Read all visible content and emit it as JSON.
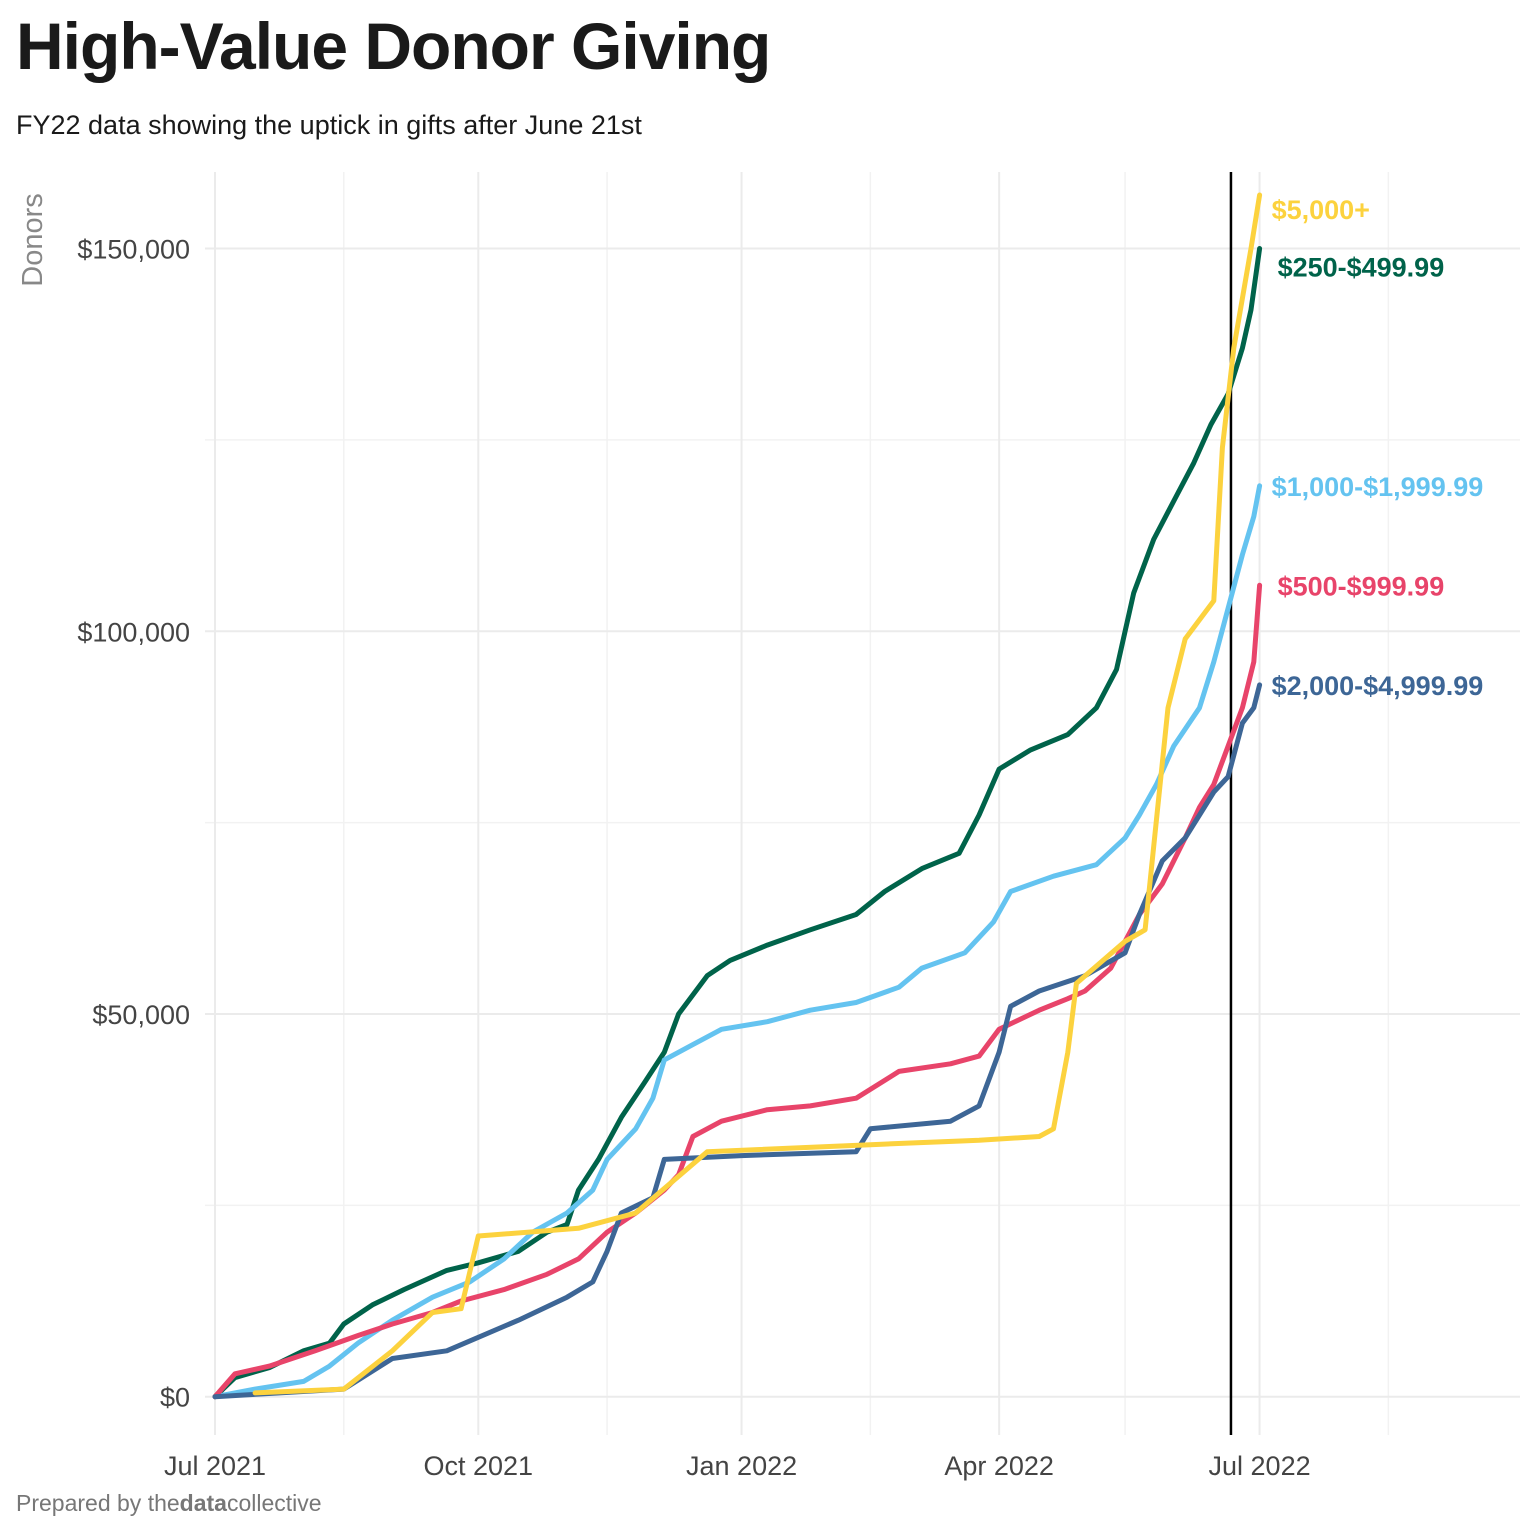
{
  "title": "High-Value Donor Giving",
  "subtitle": "FY22 data showing the uptick in gifts after June 21st",
  "caption": {
    "prefix": "Prepared by the",
    "bold": "data",
    "suffix": "collective"
  },
  "chart_data": {
    "type": "line",
    "title": "High-Value Donor Giving",
    "subtitle": "FY22 data showing the uptick in gifts after June 21st",
    "xlabel": "",
    "ylabel": "Donors",
    "x_ticks": [
      {
        "label": "Jul 2021",
        "date": "2021-07-01"
      },
      {
        "label": "Oct 2021",
        "date": "2021-10-01"
      },
      {
        "label": "Jan 2022",
        "date": "2022-01-01"
      },
      {
        "label": "Apr 2022",
        "date": "2022-04-01"
      },
      {
        "label": "Jul 2022",
        "date": "2022-07-01"
      }
    ],
    "x_minor_dates": [
      "2021-08-15",
      "2021-11-15",
      "2022-02-15",
      "2022-05-15",
      "2022-08-15"
    ],
    "xlim": [
      "2021-07-01",
      "2022-09-30"
    ],
    "y_ticks": [
      {
        "label": "$0",
        "value": 0
      },
      {
        "label": "$50,000",
        "value": 50000
      },
      {
        "label": "$100,000",
        "value": 100000
      },
      {
        "label": "$150,000",
        "value": 150000
      }
    ],
    "y_minor": [
      25000,
      75000,
      125000
    ],
    "ylim": [
      -5000,
      160000
    ],
    "grid": true,
    "legend": "direct labels at line ends",
    "reference_line": {
      "date": "2022-06-21"
    },
    "series": [
      {
        "name": "$250-$499.99",
        "color": "#00634a",
        "points": [
          [
            "2021-07-01",
            0
          ],
          [
            "2021-07-08",
            2500
          ],
          [
            "2021-07-20",
            3800
          ],
          [
            "2021-08-01",
            6000
          ],
          [
            "2021-08-10",
            7000
          ],
          [
            "2021-08-15",
            9500
          ],
          [
            "2021-08-25",
            12000
          ],
          [
            "2021-09-05",
            14000
          ],
          [
            "2021-09-20",
            16500
          ],
          [
            "2021-10-01",
            17500
          ],
          [
            "2021-10-15",
            19000
          ],
          [
            "2021-10-25",
            21500
          ],
          [
            "2021-11-01",
            22500
          ],
          [
            "2021-11-05",
            27000
          ],
          [
            "2021-11-12",
            31000
          ],
          [
            "2021-11-20",
            36500
          ],
          [
            "2021-11-28",
            41000
          ],
          [
            "2021-12-05",
            45000
          ],
          [
            "2021-12-10",
            50000
          ],
          [
            "2021-12-20",
            55000
          ],
          [
            "2021-12-28",
            57000
          ],
          [
            "2022-01-10",
            59000
          ],
          [
            "2022-01-25",
            61000
          ],
          [
            "2022-02-10",
            63000
          ],
          [
            "2022-02-20",
            66000
          ],
          [
            "2022-03-05",
            69000
          ],
          [
            "2022-03-18",
            71000
          ],
          [
            "2022-03-25",
            76000
          ],
          [
            "2022-04-01",
            82000
          ],
          [
            "2022-04-12",
            84500
          ],
          [
            "2022-04-25",
            86500
          ],
          [
            "2022-05-05",
            90000
          ],
          [
            "2022-05-12",
            95000
          ],
          [
            "2022-05-18",
            105000
          ],
          [
            "2022-05-25",
            112000
          ],
          [
            "2022-06-01",
            117000
          ],
          [
            "2022-06-08",
            122000
          ],
          [
            "2022-06-14",
            127000
          ],
          [
            "2022-06-20",
            131000
          ],
          [
            "2022-06-25",
            137000
          ],
          [
            "2022-06-28",
            142000
          ],
          [
            "2022-07-01",
            150000
          ]
        ]
      },
      {
        "name": "$1,000-$1,999.99",
        "color": "#64c3f0",
        "points": [
          [
            "2021-07-01",
            0
          ],
          [
            "2021-07-15",
            1000
          ],
          [
            "2021-08-01",
            2000
          ],
          [
            "2021-08-10",
            4000
          ],
          [
            "2021-08-20",
            7000
          ],
          [
            "2021-09-01",
            10000
          ],
          [
            "2021-09-15",
            13000
          ],
          [
            "2021-09-28",
            15000
          ],
          [
            "2021-10-10",
            18000
          ],
          [
            "2021-10-20",
            21500
          ],
          [
            "2021-11-01",
            24000
          ],
          [
            "2021-11-10",
            27000
          ],
          [
            "2021-11-15",
            31000
          ],
          [
            "2021-11-25",
            35000
          ],
          [
            "2021-12-01",
            39000
          ],
          [
            "2021-12-05",
            44000
          ],
          [
            "2021-12-15",
            46000
          ],
          [
            "2021-12-25",
            48000
          ],
          [
            "2022-01-10",
            49000
          ],
          [
            "2022-01-25",
            50500
          ],
          [
            "2022-02-10",
            51500
          ],
          [
            "2022-02-25",
            53500
          ],
          [
            "2022-03-05",
            56000
          ],
          [
            "2022-03-20",
            58000
          ],
          [
            "2022-03-30",
            62000
          ],
          [
            "2022-04-05",
            66000
          ],
          [
            "2022-04-20",
            68000
          ],
          [
            "2022-05-05",
            69500
          ],
          [
            "2022-05-15",
            73000
          ],
          [
            "2022-05-20",
            76000
          ],
          [
            "2022-05-26",
            80000
          ],
          [
            "2022-06-01",
            85000
          ],
          [
            "2022-06-10",
            90000
          ],
          [
            "2022-06-15",
            96000
          ],
          [
            "2022-06-20",
            103000
          ],
          [
            "2022-06-25",
            110000
          ],
          [
            "2022-06-29",
            115000
          ],
          [
            "2022-07-01",
            119000
          ]
        ]
      },
      {
        "name": "$500-$999.99",
        "color": "#e8446a",
        "points": [
          [
            "2021-07-01",
            0
          ],
          [
            "2021-07-08",
            3000
          ],
          [
            "2021-07-20",
            4000
          ],
          [
            "2021-08-05",
            6000
          ],
          [
            "2021-08-20",
            8000
          ],
          [
            "2021-09-01",
            9500
          ],
          [
            "2021-09-15",
            11000
          ],
          [
            "2021-09-25",
            12500
          ],
          [
            "2021-10-10",
            14000
          ],
          [
            "2021-10-25",
            16000
          ],
          [
            "2021-11-05",
            18000
          ],
          [
            "2021-11-15",
            21500
          ],
          [
            "2021-11-25",
            24000
          ],
          [
            "2021-12-05",
            27000
          ],
          [
            "2021-12-10",
            29000
          ],
          [
            "2021-12-15",
            34000
          ],
          [
            "2021-12-25",
            36000
          ],
          [
            "2022-01-10",
            37500
          ],
          [
            "2022-01-25",
            38000
          ],
          [
            "2022-02-10",
            39000
          ],
          [
            "2022-02-25",
            42500
          ],
          [
            "2022-03-15",
            43500
          ],
          [
            "2022-03-25",
            44500
          ],
          [
            "2022-04-01",
            48000
          ],
          [
            "2022-04-15",
            50500
          ],
          [
            "2022-04-25",
            52000
          ],
          [
            "2022-05-01",
            53000
          ],
          [
            "2022-05-10",
            56000
          ],
          [
            "2022-05-20",
            63000
          ],
          [
            "2022-05-28",
            67000
          ],
          [
            "2022-06-05",
            73000
          ],
          [
            "2022-06-10",
            77000
          ],
          [
            "2022-06-15",
            80000
          ],
          [
            "2022-06-20",
            85000
          ],
          [
            "2022-06-25",
            90000
          ],
          [
            "2022-06-29",
            96000
          ],
          [
            "2022-07-01",
            106000
          ]
        ]
      },
      {
        "name": "$2,000-$4,999.99",
        "color": "#3d6696",
        "points": [
          [
            "2021-07-01",
            0
          ],
          [
            "2021-08-15",
            1000
          ],
          [
            "2021-09-01",
            5000
          ],
          [
            "2021-09-20",
            6000
          ],
          [
            "2021-10-15",
            10000
          ],
          [
            "2021-11-01",
            13000
          ],
          [
            "2021-11-10",
            15000
          ],
          [
            "2021-11-15",
            19000
          ],
          [
            "2021-11-20",
            24000
          ],
          [
            "2021-12-01",
            26000
          ],
          [
            "2021-12-05",
            31000
          ],
          [
            "2022-01-01",
            31500
          ],
          [
            "2022-02-10",
            32000
          ],
          [
            "2022-02-15",
            35000
          ],
          [
            "2022-03-15",
            36000
          ],
          [
            "2022-03-25",
            38000
          ],
          [
            "2022-04-01",
            45000
          ],
          [
            "2022-04-05",
            51000
          ],
          [
            "2022-04-15",
            53000
          ],
          [
            "2022-05-01",
            55000
          ],
          [
            "2022-05-15",
            58000
          ],
          [
            "2022-05-20",
            63000
          ],
          [
            "2022-05-28",
            70000
          ],
          [
            "2022-06-05",
            73000
          ],
          [
            "2022-06-10",
            76000
          ],
          [
            "2022-06-15",
            79000
          ],
          [
            "2022-06-20",
            81000
          ],
          [
            "2022-06-25",
            88000
          ],
          [
            "2022-06-29",
            90000
          ],
          [
            "2022-07-01",
            93000
          ]
        ]
      },
      {
        "name": "$5,000+",
        "color": "#fcd23e",
        "points": [
          [
            "2021-07-15",
            500
          ],
          [
            "2021-08-15",
            1000
          ],
          [
            "2021-09-01",
            6000
          ],
          [
            "2021-09-15",
            11000
          ],
          [
            "2021-09-25",
            11500
          ],
          [
            "2021-10-01",
            21000
          ],
          [
            "2021-11-05",
            22000
          ],
          [
            "2021-11-25",
            24000
          ],
          [
            "2021-12-20",
            32000
          ],
          [
            "2022-02-20",
            33000
          ],
          [
            "2022-03-25",
            33500
          ],
          [
            "2022-04-15",
            34000
          ],
          [
            "2022-04-20",
            35000
          ],
          [
            "2022-04-25",
            45000
          ],
          [
            "2022-04-28",
            54000
          ],
          [
            "2022-05-15",
            59500
          ],
          [
            "2022-05-22",
            61000
          ],
          [
            "2022-05-30",
            90000
          ],
          [
            "2022-06-05",
            99000
          ],
          [
            "2022-06-15",
            104000
          ],
          [
            "2022-06-18",
            124000
          ],
          [
            "2022-06-22",
            137000
          ],
          [
            "2022-06-28",
            150000
          ],
          [
            "2022-07-01",
            157000
          ]
        ]
      }
    ]
  }
}
